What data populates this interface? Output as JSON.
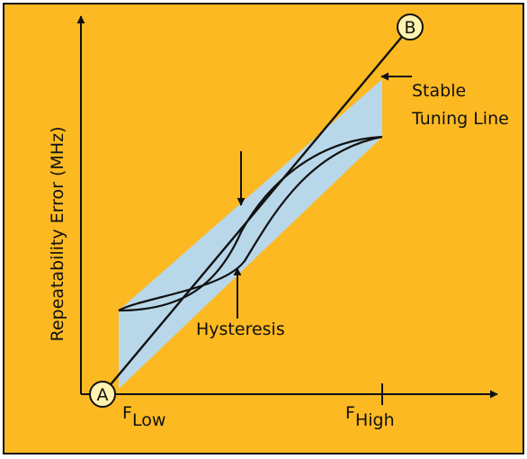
{
  "diagram": {
    "y_axis_label": "Repeatability Error (MHz)",
    "point_a": "A",
    "point_b": "B",
    "x_tick_low": {
      "main": "F",
      "sub": "Low"
    },
    "x_tick_high": {
      "main": "F",
      "sub": "High"
    },
    "stable_line_label": [
      "Stable",
      "Tuning Line"
    ],
    "hysteresis_label": "Hysteresis"
  },
  "colors": {
    "background": "#fcb922",
    "band_fill": "#b8d8ea",
    "stroke": "#111111",
    "point_fill": "#fff3b0"
  }
}
